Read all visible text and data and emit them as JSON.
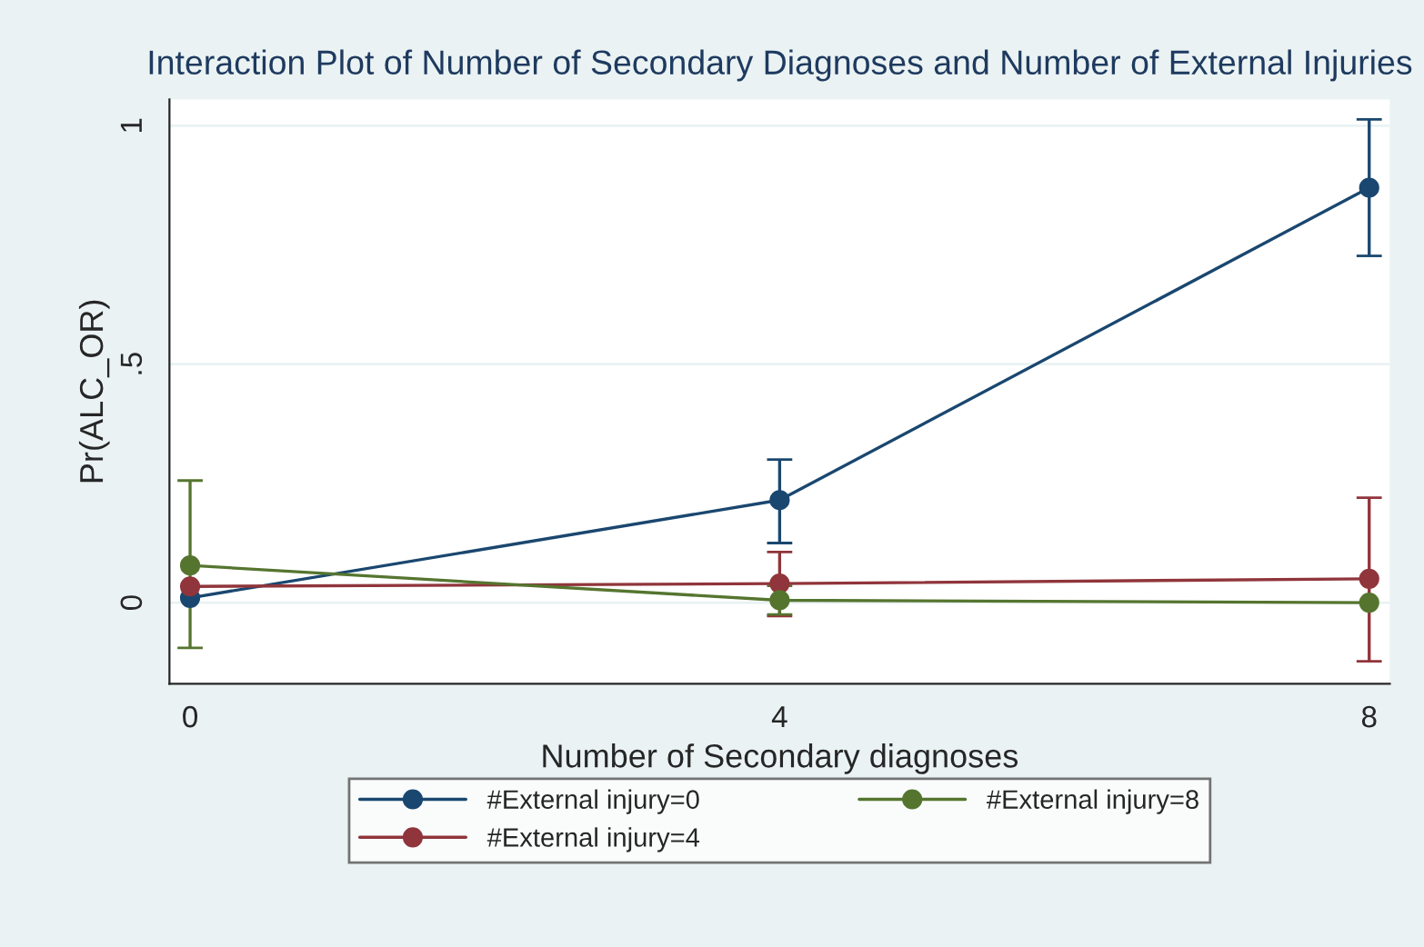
{
  "chart_data": {
    "type": "line",
    "title": "Interaction Plot of Number of Secondary Diagnoses and Number of External Injuries",
    "xlabel": "Number of Secondary diagnoses",
    "ylabel": "Pr(ALC_OR)",
    "x": [
      0,
      4,
      8
    ],
    "xlim": [
      -0.14,
      8.14
    ],
    "xticks": [
      0,
      4,
      8
    ],
    "ylim": [
      -0.17,
      1.055
    ],
    "yticks": [
      0,
      {
        "value": 0.5,
        "label": ".5"
      },
      1
    ],
    "grid": "y",
    "legend": "bottom",
    "marker": "circle",
    "line_style": "solid",
    "series": [
      {
        "name": "#External injury=0",
        "color": "#1a476f",
        "values": [
          0.01,
          0.215,
          0.87
        ],
        "errors": [
          null,
          [
            0.125,
            0.3
          ],
          [
            0.727,
            1.013
          ]
        ]
      },
      {
        "name": "#External injury=4",
        "color": "#90353b",
        "values": [
          0.034,
          0.04,
          0.05
        ],
        "errors": [
          null,
          [
            -0.028,
            0.106
          ],
          [
            -0.123,
            0.22
          ]
        ]
      },
      {
        "name": "#External injury=8",
        "color": "#55752f",
        "values": [
          0.078,
          0.005,
          0.0
        ],
        "errors": [
          [
            -0.095,
            0.256
          ],
          [
            -0.025,
            0.035
          ],
          null
        ]
      }
    ]
  }
}
